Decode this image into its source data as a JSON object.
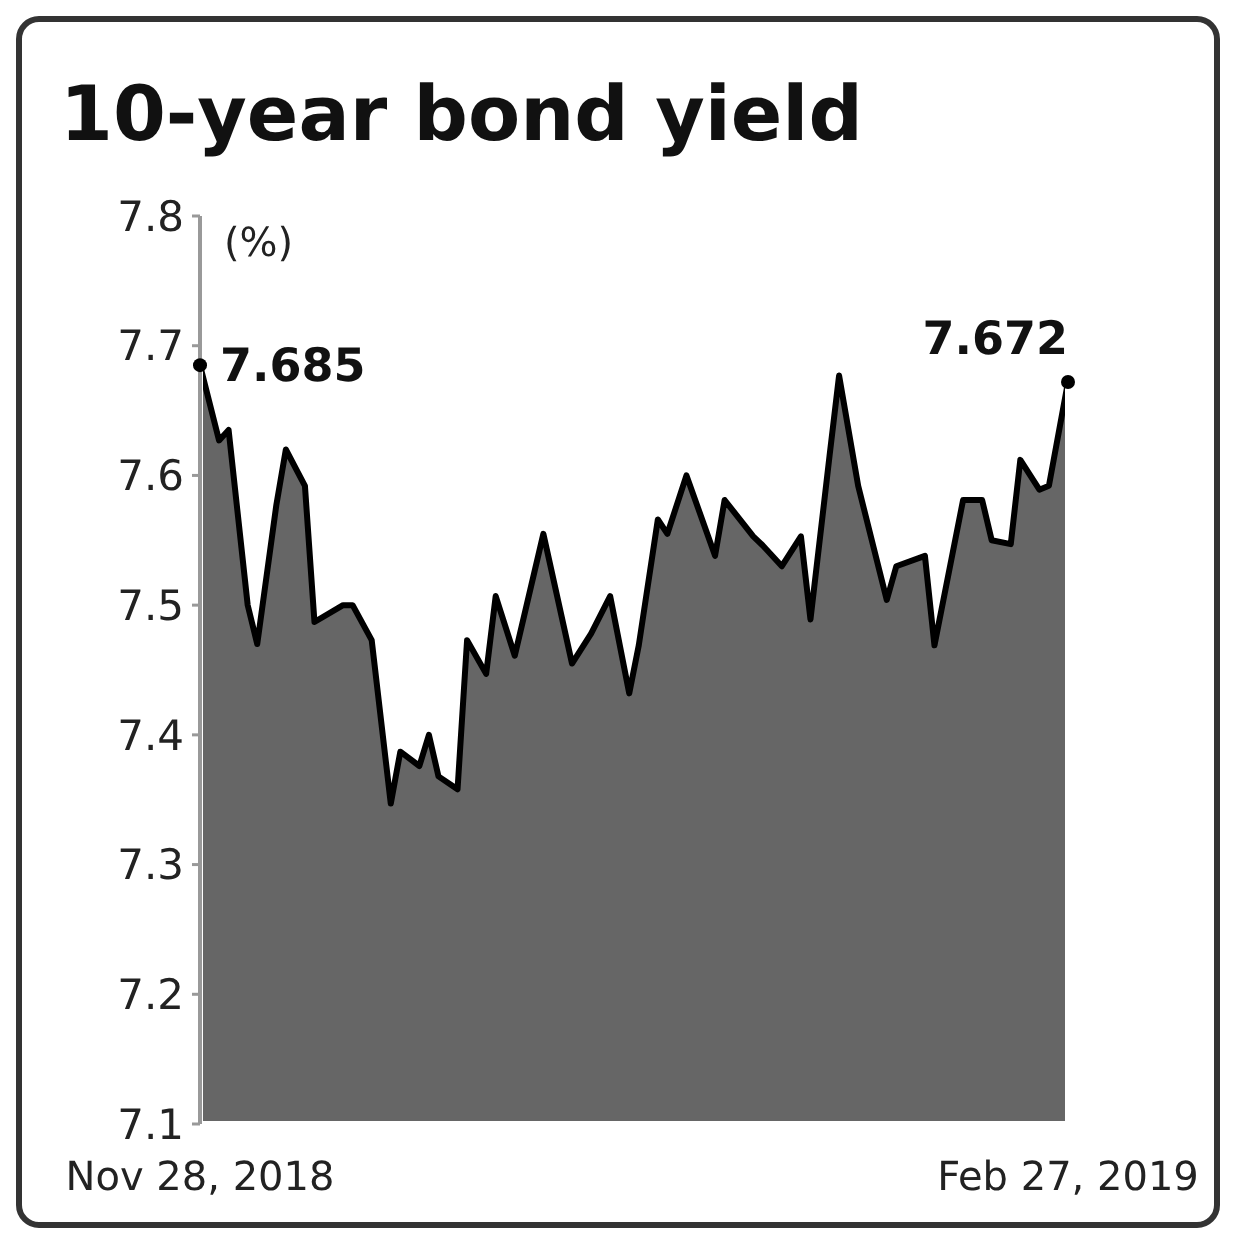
{
  "chart_data": {
    "type": "area",
    "title": "10-year bond yield",
    "ylabel": "(%)",
    "x": [
      "2018-11-28",
      "2018-11-30",
      "2018-12-01",
      "2018-12-03",
      "2018-12-04",
      "2018-12-06",
      "2018-12-07",
      "2018-12-09",
      "2018-12-10",
      "2018-12-13",
      "2018-12-14",
      "2018-12-16",
      "2018-12-18",
      "2018-12-19",
      "2018-12-21",
      "2018-12-22",
      "2018-12-23",
      "2018-12-25",
      "2018-12-26",
      "2018-12-28",
      "2018-12-29",
      "2018-12-31",
      "2019-01-03",
      "2019-01-06",
      "2019-01-08",
      "2019-01-10",
      "2019-01-12",
      "2019-01-13",
      "2019-01-15",
      "2019-01-16",
      "2019-01-18",
      "2019-01-21",
      "2019-01-22",
      "2019-01-25",
      "2019-01-26",
      "2019-01-28",
      "2019-01-30",
      "2019-01-31",
      "2019-02-02",
      "2019-02-03",
      "2019-02-05",
      "2019-02-08",
      "2019-02-09",
      "2019-02-12",
      "2019-02-13",
      "2019-02-16",
      "2019-02-18",
      "2019-02-19",
      "2019-02-21",
      "2019-02-22",
      "2019-02-24",
      "2019-02-25",
      "2019-02-27"
    ],
    "series": [
      {
        "color": "#666666",
        "values": [
          7.685,
          7.627,
          7.635,
          7.5,
          7.47,
          7.577,
          7.62,
          7.592,
          7.487,
          7.5,
          7.5,
          7.473,
          7.347,
          7.387,
          7.376,
          7.4,
          7.368,
          7.358,
          7.473,
          7.447,
          7.507,
          7.461,
          7.555,
          7.455,
          7.478,
          7.507,
          7.432,
          7.469,
          7.566,
          7.555,
          7.6,
          7.538,
          7.581,
          7.553,
          7.546,
          7.53,
          7.553,
          7.489,
          7.615,
          7.677,
          7.592,
          7.504,
          7.53,
          7.538,
          7.469,
          7.581,
          7.581,
          7.55,
          7.547,
          7.612,
          7.589,
          7.592,
          7.672
        ]
      }
    ],
    "xlim": [
      "2018-11-28",
      "2019-02-27"
    ],
    "xticks": [
      {
        "value": "2018-11-28",
        "label": "Nov 28, 2018"
      },
      {
        "value": "2019-02-27",
        "label": "Feb 27, 2019"
      }
    ],
    "ylim": [
      7.1,
      7.8
    ],
    "yticks": [
      7.1,
      7.2,
      7.3,
      7.4,
      7.5,
      7.6,
      7.7,
      7.8
    ],
    "grid": false,
    "marker": "none",
    "line_style": "solid",
    "annotations": [
      {
        "text": "7.685",
        "x": "2018-11-28",
        "y": 7.685
      },
      {
        "text": "7.672",
        "x": "2019-02-27",
        "y": 7.672
      }
    ]
  }
}
